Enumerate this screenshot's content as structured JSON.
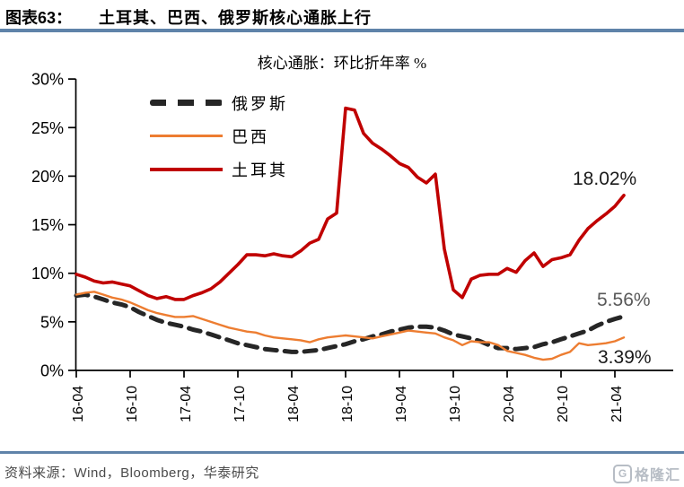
{
  "header": {
    "label": "图表63：",
    "title": "土耳其、巴西、俄罗斯核心通胀上行"
  },
  "colors": {
    "rule_blue": "#5f83a9",
    "axis": "#000000",
    "russia_line": "#262626",
    "brazil_line": "#ED7D31",
    "turkey_line": "#C00000",
    "source_gray": "#4a4a4a",
    "logo_gray": "#b7bdc5"
  },
  "chart_data": {
    "type": "line",
    "title": "核心通胀：环比折年率 %",
    "x_tick_labels": [
      "16-04",
      "16-10",
      "17-04",
      "17-10",
      "18-04",
      "18-10",
      "19-04",
      "19-10",
      "20-04",
      "20-10",
      "21-04"
    ],
    "x_months_per_tick": 6,
    "ylim": [
      0,
      30
    ],
    "y_ticks": [
      0,
      5,
      10,
      15,
      20,
      25,
      30
    ],
    "y_tick_suffix": "%",
    "grid": "off",
    "legend_position": "inside-top-left",
    "series": [
      {
        "name": "俄罗斯",
        "style": "dashed",
        "color": "#262626",
        "width": 5,
        "end_label": "5.56%",
        "values": [
          7.7,
          7.8,
          7.6,
          7.3,
          7.0,
          6.8,
          6.5,
          6.0,
          5.6,
          5.2,
          4.9,
          4.7,
          4.5,
          4.2,
          4.0,
          3.7,
          3.4,
          3.1,
          2.8,
          2.6,
          2.4,
          2.2,
          2.1,
          2.0,
          1.9,
          1.9,
          2.0,
          2.1,
          2.3,
          2.5,
          2.7,
          3.0,
          3.2,
          3.5,
          3.7,
          4.0,
          4.2,
          4.4,
          4.5,
          4.5,
          4.4,
          4.1,
          3.7,
          3.5,
          3.3,
          3.0,
          2.6,
          2.3,
          2.3,
          2.2,
          2.3,
          2.4,
          2.7,
          2.9,
          3.2,
          3.5,
          3.8,
          4.1,
          4.6,
          5.0,
          5.3,
          5.56
        ]
      },
      {
        "name": "巴西",
        "style": "solid",
        "color": "#ED7D31",
        "width": 2.4,
        "end_label": "3.39%",
        "values": [
          7.8,
          8.0,
          8.1,
          7.8,
          7.5,
          7.3,
          7.0,
          6.6,
          6.2,
          5.9,
          5.7,
          5.5,
          5.5,
          5.6,
          5.3,
          5.0,
          4.7,
          4.4,
          4.2,
          4.0,
          3.9,
          3.6,
          3.4,
          3.3,
          3.2,
          3.1,
          2.9,
          3.2,
          3.4,
          3.5,
          3.6,
          3.5,
          3.4,
          3.3,
          3.5,
          3.7,
          3.9,
          4.1,
          4.0,
          3.9,
          3.8,
          3.4,
          3.1,
          2.6,
          3.0,
          2.9,
          2.9,
          2.6,
          2.0,
          1.8,
          1.6,
          1.3,
          1.1,
          1.2,
          1.6,
          1.9,
          2.8,
          2.6,
          2.7,
          2.8,
          3.0,
          3.39
        ]
      },
      {
        "name": "土耳其",
        "style": "solid",
        "color": "#C00000",
        "width": 3.6,
        "end_label": "18.02%",
        "values": [
          9.9,
          9.6,
          9.2,
          9.0,
          9.1,
          8.9,
          8.7,
          8.2,
          7.7,
          7.4,
          7.6,
          7.3,
          7.3,
          7.7,
          8.0,
          8.4,
          9.1,
          10.0,
          10.9,
          11.9,
          11.9,
          11.8,
          12.0,
          11.8,
          11.7,
          12.3,
          13.1,
          13.5,
          15.6,
          16.2,
          27.0,
          26.8,
          24.4,
          23.4,
          22.8,
          22.1,
          21.3,
          20.9,
          19.9,
          19.3,
          20.2,
          12.5,
          8.3,
          7.5,
          9.4,
          9.8,
          9.9,
          9.9,
          10.5,
          10.1,
          11.3,
          12.1,
          10.7,
          11.4,
          11.6,
          11.9,
          13.4,
          14.6,
          15.4,
          16.1,
          16.9,
          18.02
        ]
      }
    ]
  },
  "footer": {
    "source": "资料来源：Wind，Bloomberg，华泰研究",
    "logo_icon": "G",
    "logo_text": "格隆汇"
  }
}
